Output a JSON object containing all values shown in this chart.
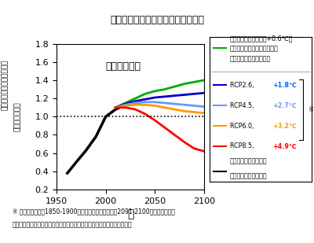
{
  "title": "穀物の世界平均収量の推移（予測）",
  "subtitle_crop": "トウモロコシ",
  "xlabel": "年",
  "ylim": [
    0.2,
    1.8
  ],
  "xlim": [
    1950,
    2100
  ],
  "yticks": [
    0.2,
    0.4,
    0.6,
    0.8,
    1.0,
    1.2,
    1.4,
    1.6,
    1.8
  ],
  "xticks": [
    1950,
    2000,
    2050,
    2100
  ],
  "footnote1": "※ 産業革命以前（1850-1900年）に対する今世紀末（2091-2100年）の世界の平",
  "footnote2": "　均気温の上昇。気候変動が進行し、増収技術と簡易な対策技術が普及。",
  "lines": {
    "black": {
      "x": [
        1961,
        1970,
        1980,
        1990,
        2000,
        2010,
        2020
      ],
      "y": [
        0.38,
        0.5,
        0.63,
        0.78,
        1.0,
        1.08,
        1.13
      ],
      "color": "#000000",
      "lw": 2.5
    },
    "green": {
      "x": [
        2010,
        2020,
        2030,
        2040,
        2050,
        2060,
        2070,
        2080,
        2090,
        2100
      ],
      "y": [
        1.1,
        1.15,
        1.2,
        1.25,
        1.28,
        1.3,
        1.33,
        1.36,
        1.38,
        1.4
      ],
      "color": "#00aa00",
      "lw": 2.0
    },
    "blue_dark": {
      "x": [
        2010,
        2020,
        2030,
        2040,
        2050,
        2060,
        2070,
        2080,
        2090,
        2100
      ],
      "y": [
        1.1,
        1.14,
        1.17,
        1.19,
        1.21,
        1.22,
        1.23,
        1.24,
        1.25,
        1.26
      ],
      "color": "#0000cc",
      "lw": 2.0
    },
    "blue_light": {
      "x": [
        2010,
        2020,
        2030,
        2040,
        2050,
        2060,
        2070,
        2080,
        2090,
        2100
      ],
      "y": [
        1.1,
        1.13,
        1.15,
        1.16,
        1.16,
        1.15,
        1.14,
        1.13,
        1.12,
        1.11
      ],
      "color": "#6699ff",
      "lw": 2.0
    },
    "orange": {
      "x": [
        2010,
        2020,
        2030,
        2040,
        2050,
        2060,
        2070,
        2080,
        2090,
        2100
      ],
      "y": [
        1.1,
        1.12,
        1.13,
        1.13,
        1.12,
        1.1,
        1.08,
        1.06,
        1.05,
        1.04
      ],
      "color": "#ff9900",
      "lw": 2.0
    },
    "red": {
      "x": [
        2010,
        2020,
        2030,
        2040,
        2050,
        2060,
        2070,
        2080,
        2090,
        2100
      ],
      "y": [
        1.1,
        1.1,
        1.08,
        1.03,
        0.96,
        0.88,
        0.8,
        0.72,
        0.65,
        0.62
      ],
      "color": "#ff0000",
      "lw": 2.0
    }
  },
  "legend": {
    "green_line1": "これまでの気温上昇（+0.6℃）",
    "green_line2": "で固定し、将来の気候変動は",
    "green_line3": "ない。増収技術が普及。",
    "rcp_entries": [
      {
        "key": "blue_dark",
        "label": "RCP2.6, ",
        "temp": "+1.8℃",
        "temp_color": "#0066ff"
      },
      {
        "key": "blue_light",
        "label": "RCP4.5, ",
        "temp": "+2.7℃",
        "temp_color": "#6699ff"
      },
      {
        "key": "orange",
        "label": "RCP6.0, ",
        "temp": "+3.2℃",
        "temp_color": "#ff9900"
      },
      {
        "key": "red",
        "label": "RCP8.5, ",
        "temp": "+4.9℃",
        "temp_color": "#ff0000"
      }
    ],
    "black_line1": "これまでの収量の推移",
    "black_line2": "（シミュレーション）"
  }
}
